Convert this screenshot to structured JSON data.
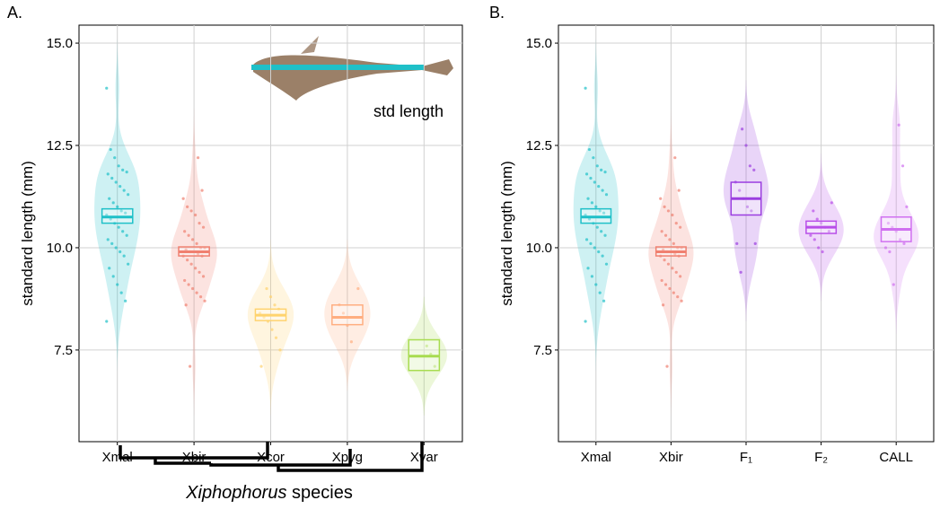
{
  "chart_data": [
    {
      "type": "violin",
      "panel": "A.",
      "ylabel": "standard length (mm)",
      "xlabel": [
        "Xiphophorus",
        "species"
      ],
      "annotation": "std length",
      "ylim": [
        5.26,
        15.44
      ],
      "yticks": [
        7.5,
        {
          "value": 10,
          "label": "10.0"
        },
        12.5,
        {
          "value": 15,
          "label": "15.0"
        }
      ],
      "grid": true,
      "categories": [
        "Xmal",
        "Xbir",
        "Xcor",
        "Xpyg",
        "Xvar"
      ],
      "groups": [
        {
          "color": "#1fc0c8",
          "center": 10.75,
          "lower": 10.6,
          "upper": 10.95,
          "values": [
            13.9,
            12.4,
            12.2,
            12.0,
            11.9,
            11.85,
            11.8,
            11.7,
            11.6,
            11.5,
            11.4,
            11.3,
            11.2,
            11.1,
            11.0,
            10.9,
            10.85,
            10.8,
            10.7,
            10.6,
            10.5,
            10.4,
            10.3,
            10.2,
            10.1,
            10.0,
            9.9,
            9.8,
            9.6,
            9.5,
            9.3,
            9.1,
            8.9,
            8.7,
            8.2
          ]
        },
        {
          "color": "#f08070",
          "center": 9.9,
          "lower": 9.8,
          "upper": 10.02,
          "values": [
            12.2,
            11.4,
            11.2,
            11.0,
            10.9,
            10.8,
            10.6,
            10.5,
            10.4,
            10.3,
            10.2,
            10.1,
            10.0,
            10.0,
            9.95,
            9.9,
            9.9,
            9.85,
            9.8,
            9.8,
            9.7,
            9.6,
            9.5,
            9.4,
            9.3,
            9.2,
            9.1,
            9.0,
            8.9,
            8.8,
            8.7,
            8.6,
            7.1
          ]
        },
        {
          "color": "#ffd36e",
          "center": 8.35,
          "lower": 8.22,
          "upper": 8.5,
          "values": [
            9.0,
            8.8,
            8.6,
            8.5,
            8.4,
            8.3,
            8.2,
            8.0,
            7.8,
            7.5,
            7.1
          ]
        },
        {
          "color": "#ffae80",
          "center": 8.3,
          "lower": 8.12,
          "upper": 8.6,
          "values": [
            9.0,
            8.6,
            8.4,
            8.1,
            7.7
          ]
        },
        {
          "color": "#a8dc50",
          "center": 7.35,
          "lower": 7.0,
          "upper": 7.75,
          "values": [
            7.6,
            7.4,
            7.1
          ]
        }
      ]
    },
    {
      "type": "violin",
      "panel": "B.",
      "ylabel": "standard length (mm)",
      "ylim": [
        5.26,
        15.44
      ],
      "yticks": [
        7.5,
        {
          "value": 10,
          "label": "10.0"
        },
        12.5,
        {
          "value": 15,
          "label": "15.0"
        }
      ],
      "grid": true,
      "categories": [
        "Xmal",
        "Xbir",
        "F₁",
        "F₂",
        "CALL"
      ],
      "groups": [
        {
          "color": "#1fc0c8",
          "center": 10.75,
          "lower": 10.6,
          "upper": 10.95,
          "values": [
            13.9,
            12.4,
            12.2,
            12.0,
            11.9,
            11.85,
            11.8,
            11.7,
            11.6,
            11.5,
            11.4,
            11.3,
            11.2,
            11.1,
            11.0,
            10.9,
            10.85,
            10.8,
            10.7,
            10.6,
            10.5,
            10.4,
            10.3,
            10.2,
            10.1,
            10.0,
            9.9,
            9.8,
            9.6,
            9.5,
            9.3,
            9.1,
            8.9,
            8.7,
            8.2
          ]
        },
        {
          "color": "#f08070",
          "center": 9.9,
          "lower": 9.8,
          "upper": 10.02,
          "values": [
            12.2,
            11.4,
            11.2,
            11.0,
            10.9,
            10.8,
            10.6,
            10.5,
            10.4,
            10.3,
            10.2,
            10.1,
            10.0,
            10.0,
            9.95,
            9.9,
            9.9,
            9.85,
            9.8,
            9.8,
            9.7,
            9.6,
            9.5,
            9.4,
            9.3,
            9.2,
            9.1,
            9.0,
            8.9,
            8.8,
            8.7,
            8.6,
            7.1
          ]
        },
        {
          "color": "#9b3ee0",
          "center": 11.2,
          "lower": 10.8,
          "upper": 11.6,
          "values": [
            12.9,
            12.5,
            12.0,
            11.9,
            11.6,
            11.4,
            11.2,
            11.0,
            10.9,
            10.1,
            10.1,
            9.4
          ]
        },
        {
          "color": "#b84ee8",
          "center": 10.5,
          "lower": 10.35,
          "upper": 10.65,
          "values": [
            11.1,
            10.9,
            10.7,
            10.6,
            10.5,
            10.4,
            10.3,
            10.2,
            10.0,
            9.9
          ]
        },
        {
          "color": "#d070f0",
          "center": 10.45,
          "lower": 10.15,
          "upper": 10.75,
          "values": [
            13.0,
            12.0,
            11.0,
            10.6,
            10.5,
            10.4,
            10.2,
            10.1,
            10.0,
            9.9,
            9.1
          ]
        }
      ]
    }
  ]
}
